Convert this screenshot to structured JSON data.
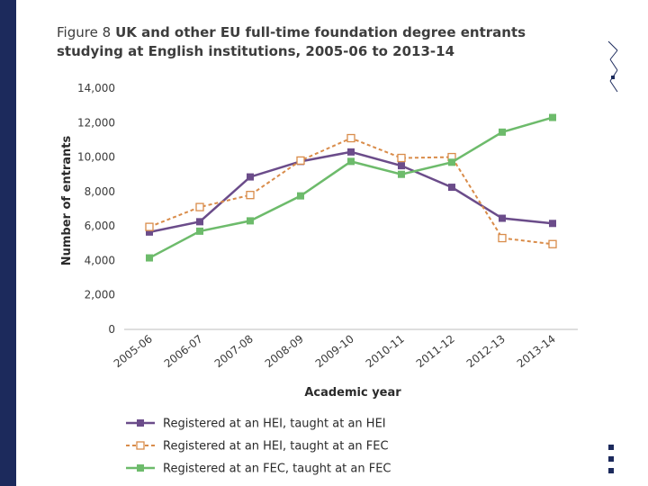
{
  "figure": {
    "number": "Figure 8",
    "title": "UK and other EU full-time foundation degree entrants studying at English institutions, 2005-06 to 2013-14"
  },
  "chart_data": {
    "type": "line",
    "title": "UK and other EU full-time foundation degree entrants studying at English institutions, 2005-06 to 2013-14",
    "xlabel": "Academic year",
    "ylabel": "Number of entrants",
    "ylim": [
      0,
      14000
    ],
    "yticks": [
      0,
      2000,
      4000,
      6000,
      8000,
      10000,
      12000,
      14000
    ],
    "ytick_labels": [
      "0",
      "2,000",
      "4,000",
      "6,000",
      "8,000",
      "10,000",
      "12,000",
      "14,000"
    ],
    "categories": [
      "2005-06",
      "2006-07",
      "2007-08",
      "2008-09",
      "2009-10",
      "2010-11",
      "2011-12",
      "2012-13",
      "2013-14"
    ],
    "grid": false,
    "legend_position": "bottom",
    "series": [
      {
        "name": "Registered at an HEI, taught at an HEI",
        "color": "#6b4c8a",
        "line": "solid",
        "marker": "filled-square",
        "values": [
          5650,
          6250,
          8850,
          9750,
          10300,
          9500,
          8250,
          6450,
          6150
        ]
      },
      {
        "name": "Registered at an HEI, taught at an FEC",
        "color": "#d98c4a",
        "line": "dashed",
        "marker": "open-square",
        "values": [
          5950,
          7100,
          7800,
          9800,
          11100,
          9950,
          10000,
          5300,
          4950
        ]
      },
      {
        "name": "Registered at an FEC, taught at an FEC",
        "color": "#6dbb6b",
        "line": "solid",
        "marker": "filled-square",
        "values": [
          4150,
          5700,
          6300,
          7750,
          9750,
          9000,
          9700,
          11450,
          12300
        ]
      }
    ]
  }
}
